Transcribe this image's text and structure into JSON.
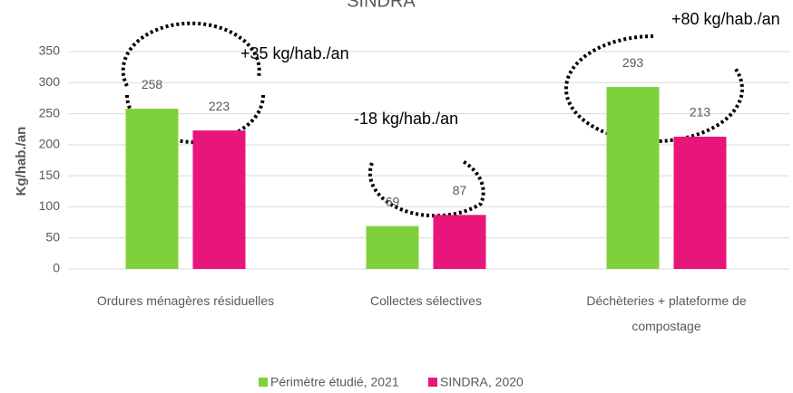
{
  "chart_data": {
    "type": "bar",
    "title": "SINDRA",
    "y_label": "Kg/hab./an",
    "categories": [
      "Ordures ménagères résiduelles",
      "Collectes sélectives",
      "Déchèteries + plateforme de compostage"
    ],
    "series": [
      {
        "name": "Périmètre étudié, 2021",
        "color": "#7fd13b",
        "values": [
          258,
          69,
          293
        ]
      },
      {
        "name": "SINDRA, 2020",
        "color": "#e8157a",
        "values": [
          223,
          87,
          213
        ]
      }
    ],
    "annotations": [
      "+35 kg/hab./an",
      "-18 kg/hab./an",
      "+80 kg/hab./an"
    ],
    "ylim": [
      0,
      350
    ],
    "yticks": [
      0,
      50,
      100,
      150,
      200,
      250,
      300,
      350
    ],
    "grid": true,
    "legend": "bottom"
  }
}
